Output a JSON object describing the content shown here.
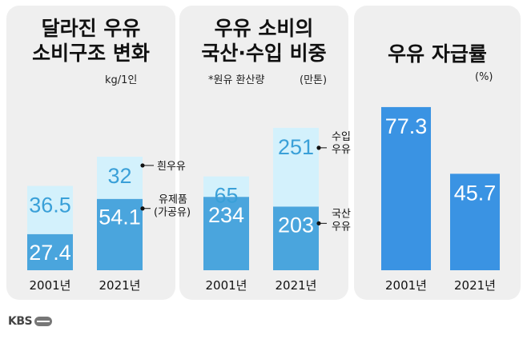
{
  "panels": [
    {
      "title_line1": "달라진 우유",
      "title_line2": "소비구조 변화",
      "unit": "kg/1인"
    },
    {
      "title_line1": "우유 소비의",
      "title_line2": "국산·수입 비중",
      "note": "*원유 환산량",
      "unit": "(만톤)"
    },
    {
      "title_line1": "우유 자급률",
      "unit": "(%)"
    }
  ],
  "logo": "KBS",
  "colors": {
    "panel_bg": "#efefef",
    "dark_blue": "#4aa5dd",
    "light_blue": "#d3f1fc",
    "light_text": "#3aa0d8",
    "solid_blue": "#3a93e3"
  },
  "chart_data": [
    {
      "type": "bar",
      "stacked": true,
      "title": "달라진 우유 소비구조 변화",
      "unit": "kg/1인",
      "categories": [
        "2001년",
        "2021년"
      ],
      "series": [
        {
          "name": "유제품 (가공유)",
          "values": [
            27.4,
            54.1
          ],
          "color": "#4aa5dd"
        },
        {
          "name": "흰우유",
          "values": [
            36.5,
            32
          ],
          "color": "#d3f1fc"
        }
      ],
      "annotations": [
        "흰우유",
        "유제품",
        "(가공유)"
      ]
    },
    {
      "type": "bar",
      "stacked": true,
      "title": "우유 소비의 국산·수입 비중",
      "note": "*원유 환산량",
      "unit": "(만톤)",
      "categories": [
        "2001년",
        "2021년"
      ],
      "series": [
        {
          "name": "국산 우유",
          "values": [
            234,
            203
          ],
          "color": "#4aa5dd"
        },
        {
          "name": "수입 우유",
          "values": [
            65,
            251
          ],
          "color": "#d3f1fc"
        }
      ],
      "annotations": [
        "수입",
        "우유",
        "국산",
        "우유"
      ]
    },
    {
      "type": "bar",
      "title": "우유 자급률",
      "unit": "(%)",
      "categories": [
        "2001년",
        "2021년"
      ],
      "series": [
        {
          "values": [
            77.3,
            45.7
          ],
          "color": "#3a93e3"
        }
      ]
    }
  ]
}
